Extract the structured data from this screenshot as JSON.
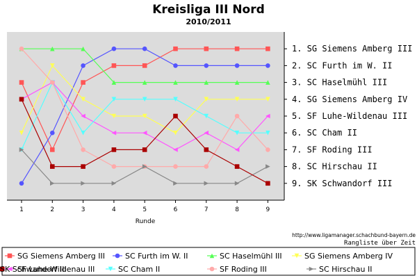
{
  "chart_data": {
    "type": "line",
    "title": "Kreisliga III Nord",
    "subtitle": "2010/2011",
    "xlabel": "Runde",
    "ylabel": "",
    "x": [
      1,
      2,
      3,
      4,
      5,
      6,
      7,
      8,
      9
    ],
    "ylim": [
      10,
      0
    ],
    "grid": false,
    "rank_labels": [
      "1. SG Siemens Amberg III",
      "2. SC Furth im W. II",
      "3. SC Haselmühl III",
      "4. SG Siemens Amberg IV",
      "5. SF Luhe-Wildenau III",
      "6. SC Cham II",
      "7. SF Roding III",
      "8. SC Hirschau II",
      "9. SK Schwandorf III"
    ],
    "footer_url": "http://www.ligamanager.schachbund-bayern.de",
    "footer_caption": "Rangliste über Zeit",
    "series": [
      {
        "name": "SG Siemens Amberg III",
        "color": "#ff5555",
        "marker": "square",
        "values": [
          3,
          7,
          3,
          2,
          2,
          1,
          1,
          1,
          1
        ]
      },
      {
        "name": "SC Furth im W. II",
        "color": "#5555ff",
        "marker": "circle",
        "values": [
          9,
          6,
          2,
          1,
          1,
          2,
          2,
          2,
          2
        ]
      },
      {
        "name": "SC Haselmühl III",
        "color": "#55ff55",
        "marker": "triangle-up",
        "values": [
          1,
          1,
          1,
          3,
          3,
          3,
          3,
          3,
          3
        ]
      },
      {
        "name": "SG Siemens Amberg IV",
        "color": "#ffff55",
        "marker": "triangle-down",
        "values": [
          6,
          2,
          4,
          5,
          5,
          6,
          4,
          4,
          4
        ]
      },
      {
        "name": "SF Luhe-Wildenau III",
        "color": "#ff55ff",
        "marker": "triangle-left",
        "values": [
          4,
          3,
          5,
          6,
          6,
          7,
          6,
          7,
          5
        ]
      },
      {
        "name": "SC Cham II",
        "color": "#55ffff",
        "marker": "triangle-down",
        "values": [
          7,
          3,
          6,
          4,
          4,
          4,
          5,
          6,
          6
        ]
      },
      {
        "name": "SF Roding III",
        "color": "#ffaaaa",
        "marker": "circle",
        "values": [
          1,
          3,
          7,
          8,
          8,
          8,
          8,
          5,
          7
        ]
      },
      {
        "name": "SC Hirschau II",
        "color": "#888888",
        "marker": "triangle-right",
        "values": [
          7,
          9,
          9,
          9,
          8,
          9,
          9,
          9,
          8
        ]
      },
      {
        "name": "SK Schwandorf III",
        "color": "#aa0000",
        "marker": "square",
        "values": [
          4,
          8,
          8,
          7,
          7,
          5,
          7,
          8,
          9
        ]
      }
    ]
  }
}
